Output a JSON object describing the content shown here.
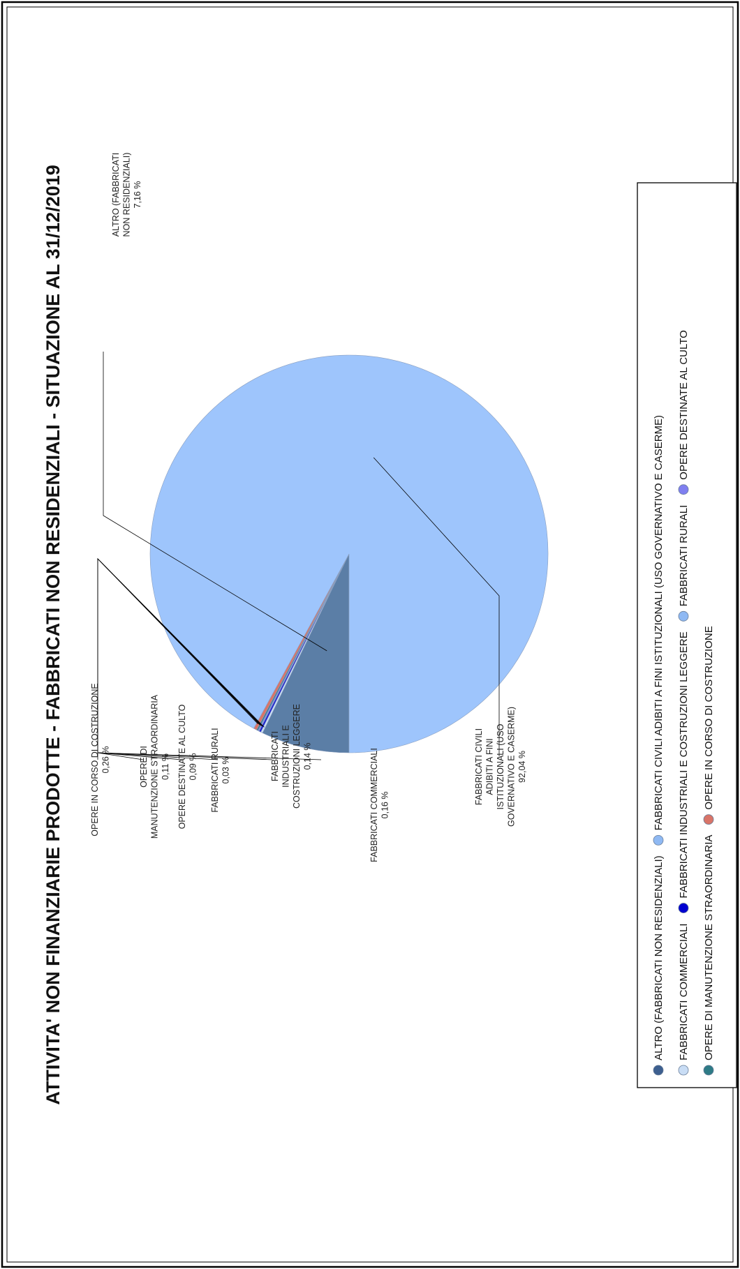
{
  "chart_data": {
    "type": "pie",
    "title": "ATTIVITA' NON FINANZIARIE PRODOTTE - FABBRICATI NON RESIDENZIALI - SITUAZIONE AL 31/12/2019",
    "slices": [
      {
        "name": "ALTRO (FABBRICATI NON RESIDENZIALI)",
        "value": 7.16,
        "color": "#5b7ea6",
        "label_lines": [
          "ALTRO (FABBRICATI",
          "NON RESIDENZIALI)",
          "7,16 %"
        ]
      },
      {
        "name": "FABBRICATI COMMERCIALI",
        "value": 0.16,
        "color": "#c9ddf5",
        "label_lines": [
          "FABBRICATI COMMERCIALI",
          "0,16 %"
        ]
      },
      {
        "name": "FABBRICATI INDUSTRIALI E COSTRUZIONI LEGGERE",
        "value": 0.14,
        "color": "#1414d6",
        "label_lines": [
          "FABBRICATI",
          "INDUSTRIALI E",
          "COSTRUZIONI LEGGERE",
          "0,14 %"
        ]
      },
      {
        "name": "FABBRICATI RURALI",
        "value": 0.03,
        "color": "#9ec5f8",
        "label_lines": [
          "FABBRICATI RURALI",
          "0,03 %"
        ]
      },
      {
        "name": "OPERE DESTINATE AL CULTO",
        "value": 0.09,
        "color": "#7f7ff0",
        "label_lines": [
          "OPERE DESTINATE AL CULTO",
          "0,09 %"
        ]
      },
      {
        "name": "OPERE DI MANUTENZIONE STRAORDINARIA",
        "value": 0.11,
        "color": "#2e7b86",
        "label_lines": [
          "OPERE DI",
          "MANUTENZIONE STRAORDINARIA",
          "0,11 %"
        ]
      },
      {
        "name": "OPERE IN CORSO DI COSTRUZIONE",
        "value": 0.26,
        "color": "#d97468",
        "label_lines": [
          "OPERE IN CORSO DI COSTRUZIONE",
          "0,26 %"
        ]
      },
      {
        "name": "FABBRICATI CIVILI ADIBITI A FINI ISTITUZIONALI (USO GOVERNATIVO E CASERME)",
        "value": 92.04,
        "color": "#9ec5fc",
        "label_lines": [
          "FABBRICATI CIVILI",
          "ADIBITI A FINI",
          "ISTITUZIONALI (USO",
          "GOVERNATIVO E CASERME)",
          "92,04 %"
        ]
      }
    ],
    "legend": {
      "placement": "right",
      "rows": [
        [
          {
            "label": "ALTRO (FABBRICATI NON RESIDENZIALI)",
            "color": "#3d5f8f"
          },
          {
            "label": "FABBRICATI CIVILI ADIBITI A FINI ISTITUZIONALI (USO GOVERNATIVO E CASERME)",
            "color": "#8fb9f3"
          }
        ],
        [
          {
            "label": "FABBRICATI COMMERCIALI",
            "color": "#c9ddf5"
          },
          {
            "label": "FABBRICATI INDUSTRIALI E COSTRUZIONI LEGGERE",
            "color": "#0000d0"
          },
          {
            "label": "FABBRICATI RURALI",
            "color": "#8fb9f3"
          },
          {
            "label": "OPERE DESTINATE AL CULTO",
            "color": "#7f7ff0"
          }
        ],
        [
          {
            "label": "OPERE DI MANUTENZIONE STRAORDINARIA",
            "color": "#2e7b86"
          },
          {
            "label": "OPERE IN CORSO DI COSTRUZIONE",
            "color": "#d97468"
          }
        ]
      ]
    }
  }
}
